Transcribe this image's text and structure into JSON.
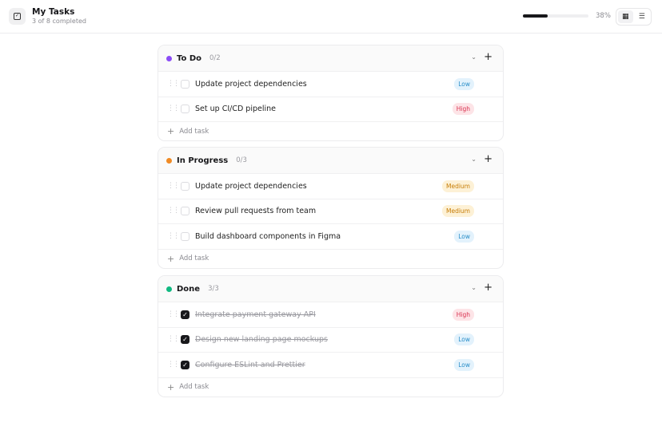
{
  "header": {
    "title": "My Tasks",
    "subtitle": "3 of 8 completed",
    "progress_percent": 38,
    "progress_label": "38%",
    "views": [
      {
        "icon": "grid-icon",
        "active": true
      },
      {
        "icon": "list-icon",
        "active": false
      }
    ]
  },
  "add_label": "Add task",
  "colors": {
    "todo": "#8b4cf6",
    "in_progress": "#f08a24",
    "done": "#10b981"
  },
  "columns": [
    {
      "title": "To Do",
      "count": "0/2",
      "dot": "#8b4cf6",
      "tasks": [
        {
          "text": "Update project dependencies",
          "priority": "Low",
          "done": false
        },
        {
          "text": "Set up CI/CD pipeline",
          "priority": "High",
          "done": false
        }
      ]
    },
    {
      "title": "In Progress",
      "count": "0/3",
      "dot": "#f08a24",
      "tasks": [
        {
          "text": "Update project dependencies",
          "priority": "Medium",
          "done": false
        },
        {
          "text": "Review pull requests from team",
          "priority": "Medium",
          "done": false
        },
        {
          "text": "Build dashboard components in Figma",
          "priority": "Low",
          "done": false
        }
      ]
    },
    {
      "title": "Done",
      "count": "3/3",
      "dot": "#10b981",
      "tasks": [
        {
          "text": "Integrate payment gateway API",
          "priority": "High",
          "done": true
        },
        {
          "text": "Design new landing page mockups",
          "priority": "Low",
          "done": true
        },
        {
          "text": "Configure ESLint and Prettier",
          "priority": "Low",
          "done": true
        }
      ]
    }
  ]
}
